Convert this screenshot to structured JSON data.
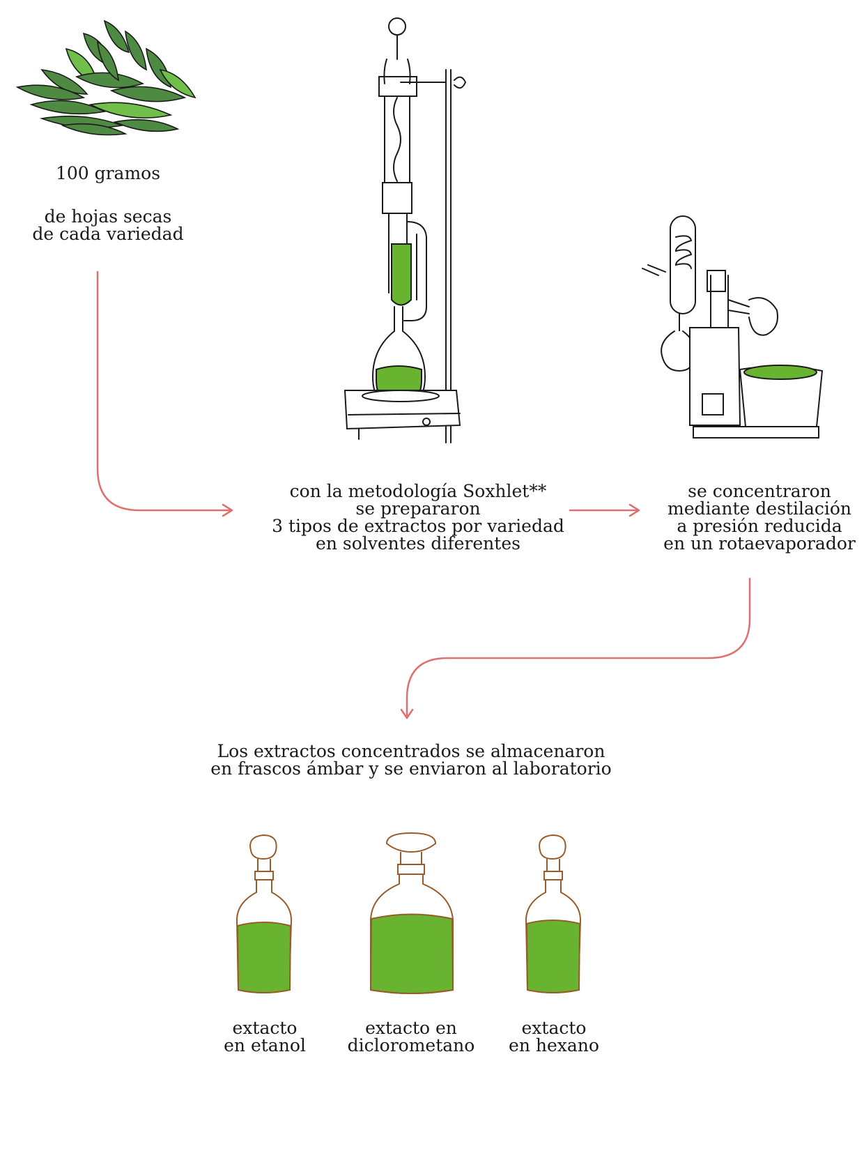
{
  "colors": {
    "arrow": "#e07070",
    "liquid": "#68b430",
    "leaf": "#4f8a43",
    "leaf_light": "#6fbf4a",
    "ink": "#1a1a1a",
    "bottle_outline": "#9a5a2a"
  },
  "steps": {
    "leaves": {
      "icon": "dried-leaves-pile-icon",
      "line1": "100 gramos",
      "line2": "de hojas secas",
      "line3": "de cada variedad"
    },
    "soxhlet": {
      "icon": "soxhlet-extractor-icon",
      "line1": "con la metodología Soxhlet**",
      "line2": "se prepararon",
      "line3": "3 tipos de extractos por variedad",
      "line4": "en solventes diferentes"
    },
    "rotavap": {
      "icon": "rotary-evaporator-icon",
      "line1": "se concentraron",
      "line2": "mediante destilación",
      "line3": "a presión reducida",
      "line4": "en un rotaevaporador"
    },
    "storage": {
      "line1": "Los extractos concentrados se almacenaron",
      "line2": "en frascos ámbar y se enviaron al laboratorio"
    }
  },
  "bottles": [
    {
      "icon": "amber-bottle-icon",
      "line1": "extacto",
      "line2": "en etanol"
    },
    {
      "icon": "amber-bottle-icon",
      "line1": "extacto en",
      "line2": "diclorometano"
    },
    {
      "icon": "amber-bottle-icon",
      "line1": "extacto",
      "line2": "en hexano"
    }
  ]
}
